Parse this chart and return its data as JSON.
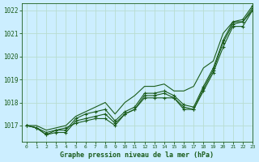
{
  "title": "Graphe pression niveau de la mer (hPa)",
  "bg_color": "#cceeff",
  "grid_color": "#b8ddd0",
  "line_color": "#1a5c1a",
  "xlim": [
    -0.5,
    23
  ],
  "ylim": [
    1016.3,
    1022.3
  ],
  "yticks": [
    1017,
    1018,
    1019,
    1020,
    1021,
    1022
  ],
  "xticks": [
    0,
    1,
    2,
    3,
    4,
    5,
    6,
    7,
    8,
    9,
    10,
    11,
    12,
    13,
    14,
    15,
    16,
    17,
    18,
    19,
    20,
    21,
    22,
    23
  ],
  "series_with_markers": [
    [
      1017.0,
      1016.9,
      1016.6,
      1016.8,
      1016.9,
      1017.1,
      1017.2,
      1017.3,
      1017.3,
      1017.0,
      1017.5,
      1017.7,
      1018.2,
      1018.2,
      1018.2,
      1018.2,
      1017.7,
      1017.7,
      1018.5,
      1019.3,
      1020.4,
      1021.3,
      1021.3,
      1022.0
    ],
    [
      1017.0,
      1016.9,
      1016.6,
      1016.7,
      1016.7,
      1017.2,
      1017.3,
      1017.4,
      1017.5,
      1017.1,
      1017.5,
      1017.7,
      1018.3,
      1018.3,
      1018.4,
      1018.2,
      1017.8,
      1017.7,
      1018.6,
      1019.4,
      1020.6,
      1021.4,
      1021.5,
      1022.1
    ],
    [
      1017.0,
      1016.9,
      1016.7,
      1016.8,
      1016.8,
      1017.3,
      1017.5,
      1017.6,
      1017.7,
      1017.2,
      1017.6,
      1017.8,
      1018.4,
      1018.4,
      1018.5,
      1018.3,
      1017.9,
      1017.8,
      1018.7,
      1019.5,
      1020.7,
      1021.5,
      1021.6,
      1022.2
    ]
  ],
  "series_no_markers": [
    [
      1017.0,
      1017.0,
      1016.8,
      1016.9,
      1017.0,
      1017.4,
      1017.6,
      1017.8,
      1018.0,
      1017.5,
      1018.0,
      1018.3,
      1018.7,
      1018.7,
      1018.8,
      1018.5,
      1018.5,
      1018.7,
      1019.5,
      1019.8,
      1021.0,
      1021.5,
      1021.5,
      1022.0
    ]
  ]
}
